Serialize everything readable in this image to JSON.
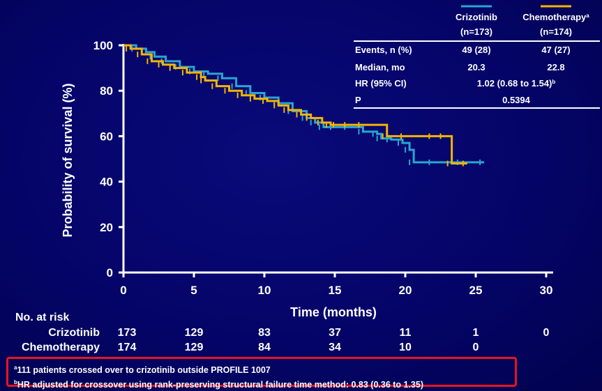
{
  "chart_data": {
    "type": "line",
    "subtype": "kaplan-meier",
    "xlabel": "Time (months)",
    "ylabel": "Probability of survival (%)",
    "xlim": [
      0,
      30
    ],
    "ylim": [
      0,
      100
    ],
    "xticks": [
      "0",
      "5",
      "10",
      "15",
      "20",
      "25",
      "30"
    ],
    "yticks": [
      "0",
      "20",
      "40",
      "60",
      "80",
      "100"
    ],
    "grid": false,
    "series": [
      {
        "name": "Crizotinib",
        "color": "#2aa5cf",
        "x": [
          0,
          0.9,
          1.6,
          2.2,
          3.0,
          4.0,
          5.0,
          6.0,
          7.0,
          8.0,
          9.0,
          10.0,
          11.0,
          12.0,
          13.0,
          13.6,
          14.2,
          15.0,
          16.0,
          17.0,
          18.0,
          18.3,
          19.0,
          19.8,
          20.3,
          20.6,
          22.0,
          24.0,
          25.6
        ],
        "y": [
          100,
          98.5,
          97,
          95,
          93,
          90.5,
          88.5,
          87.5,
          85.5,
          82,
          79,
          77,
          74.5,
          71,
          68,
          66,
          64,
          64,
          64,
          62,
          61,
          59,
          58.5,
          57,
          54,
          48.5,
          48.5,
          48.5,
          48.5
        ]
      },
      {
        "name": "Chemotherapy",
        "color": "#f5b400",
        "x": [
          0,
          0.5,
          1.3,
          2.0,
          2.8,
          3.6,
          4.5,
          5.5,
          5.8,
          6.6,
          7.5,
          8.4,
          9.3,
          10.2,
          11.0,
          11.7,
          12.6,
          13.3,
          14.1,
          14.7,
          15.2,
          16.0,
          17.0,
          18.7,
          20.0,
          22.0,
          22.8,
          23.3,
          24.4
        ],
        "y": [
          100,
          98.5,
          96,
          93,
          91.5,
          90,
          88,
          86,
          84.5,
          82,
          80,
          78,
          76.5,
          75.5,
          73.5,
          71.5,
          69.5,
          68,
          66,
          65,
          65,
          65,
          65,
          60,
          60,
          60,
          60,
          48,
          48
        ]
      }
    ],
    "summary_table": {
      "headers": [
        {
          "name": "Crizotinib",
          "n": "(n=173)",
          "sup": ""
        },
        {
          "name": "Chemotherapy",
          "n": "(n=174)",
          "sup": "a"
        }
      ],
      "rows": [
        {
          "label": "Events, n (%)",
          "c1": "49 (28)",
          "c2": "47 (27)"
        },
        {
          "label": "Median, mo",
          "c1": "20.3",
          "c2": "22.8"
        },
        {
          "label": "HR (95% CI)",
          "span": "1.02 (0.68 to 1.54)",
          "sup": "b"
        },
        {
          "label": "P",
          "span": "0.5394"
        }
      ]
    },
    "at_risk": {
      "title": "No. at risk",
      "rows": [
        {
          "label": "Crizotinib",
          "values": [
            "173",
            "129",
            "83",
            "37",
            "11",
            "1",
            "0"
          ]
        },
        {
          "label": "Chemotherapy",
          "values": [
            "174",
            "129",
            "84",
            "34",
            "10",
            "0",
            ""
          ]
        }
      ]
    }
  },
  "footnotes": [
    {
      "sup": "a",
      "text": "111 patients crossed over to crizotinib outside PROFILE 1007"
    },
    {
      "sup": "b",
      "text": "HR adjusted for crossover using rank-preserving structural failure time method: 0.83 (0.36 to 1.35)"
    }
  ]
}
